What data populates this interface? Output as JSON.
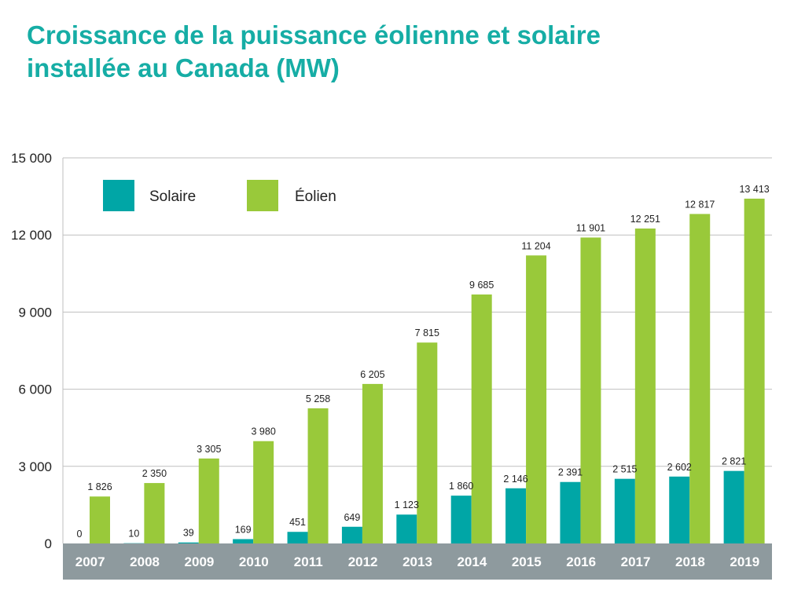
{
  "chart_data": {
    "type": "bar",
    "title_lines": [
      "Croissance de la puissance éolienne et solaire",
      "installée au Canada (MW)"
    ],
    "categories": [
      "2007",
      "2008",
      "2009",
      "2010",
      "2011",
      "2012",
      "2013",
      "2014",
      "2015",
      "2016",
      "2017",
      "2018",
      "2019"
    ],
    "series": [
      {
        "name": "Solaire",
        "color": "#00a6a6",
        "values": [
          0,
          10,
          39,
          169,
          451,
          649,
          1123,
          1860,
          2146,
          2391,
          2515,
          2602,
          2821
        ],
        "labels": [
          "0",
          "10",
          "39",
          "169",
          "451",
          "649",
          "1 123",
          "1 860",
          "2 146",
          "2 391",
          "2 515",
          "2 602",
          "2 821"
        ]
      },
      {
        "name": "Éolien",
        "color": "#99c93a",
        "values": [
          1826,
          2350,
          3305,
          3980,
          5258,
          6205,
          7815,
          9685,
          11204,
          11901,
          12251,
          12817,
          13413
        ],
        "labels": [
          "1 826",
          "2 350",
          "3 305",
          "3 980",
          "5 258",
          "6 205",
          "7 815",
          "9 685",
          "11 204",
          "11 901",
          "12 251",
          "12 817",
          "13 413"
        ]
      }
    ],
    "ylim": [
      0,
      15000
    ],
    "yticks": [
      0,
      3000,
      6000,
      9000,
      12000,
      15000
    ],
    "ytick_labels": [
      "0",
      "3 000",
      "6 000",
      "9 000",
      "12 000",
      "15 000"
    ],
    "grid": true,
    "legend": "top-left",
    "axis_band_color": "#8e9a9e",
    "grid_color": "#bfbfbf"
  }
}
